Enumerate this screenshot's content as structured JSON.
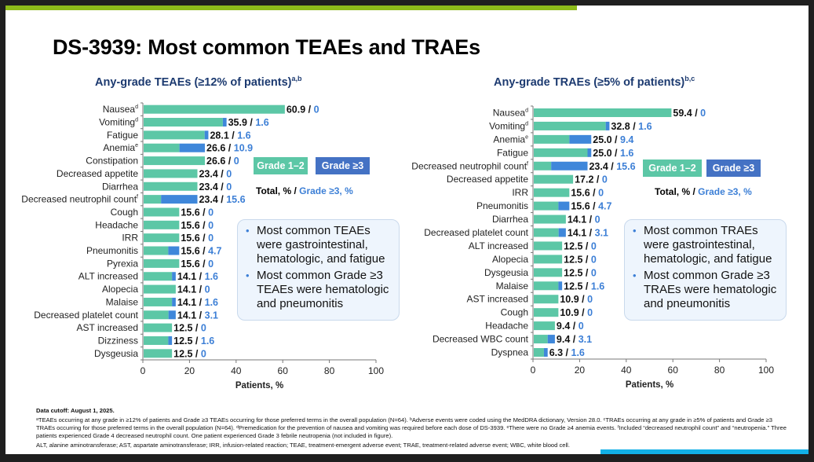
{
  "title": "DS-3939: Most common TEAEs and TRAEs",
  "colors": {
    "grade12": "#5cc7a6",
    "grade3": "#3f87da",
    "value_total": "#111111",
    "value_g3": "#3c7fd6"
  },
  "legend": {
    "grade12": "Grade 1–2",
    "grade3": "Grade ≥3",
    "total_label": "Total, % / ",
    "g3_label": "Grade ≥3, %"
  },
  "chart_data": [
    {
      "type": "bar",
      "orientation": "horizontal-stacked",
      "title": "Any-grade TEAEs (≥12% of patients)",
      "title_sup": "a,b",
      "xlabel": "Patients, %",
      "xlim": [
        0,
        100
      ],
      "xticks": [
        "0",
        "20",
        "40",
        "60",
        "80",
        "100"
      ],
      "categories": [
        "Nausea",
        "Vomiting",
        "Fatigue",
        "Anemia",
        "Constipation",
        "Decreased appetite",
        "Diarrhea",
        "Decreased neutrophil count",
        "Cough",
        "Headache",
        "IRR",
        "Pneumonitis",
        "Pyrexia",
        "ALT increased",
        "Alopecia",
        "Malaise",
        "Decreased platelet count",
        "AST increased",
        "Dizziness",
        "Dysgeusia"
      ],
      "category_sups": [
        "d",
        "d",
        "",
        "e",
        "",
        "",
        "",
        "f",
        "",
        "",
        "",
        "",
        "",
        "",
        "",
        "",
        "",
        "",
        "",
        ""
      ],
      "series": [
        {
          "name": "Total",
          "values": [
            60.9,
            35.9,
            28.1,
            26.6,
            26.6,
            23.4,
            23.4,
            23.4,
            15.6,
            15.6,
            15.6,
            15.6,
            15.6,
            14.1,
            14.1,
            14.1,
            14.1,
            12.5,
            12.5,
            12.5
          ]
        },
        {
          "name": "Grade ≥3",
          "values": [
            0,
            1.6,
            1.6,
            10.9,
            0,
            0,
            0,
            15.6,
            0,
            0,
            0,
            4.7,
            0,
            1.6,
            0,
            1.6,
            3.1,
            0,
            1.6,
            0
          ]
        }
      ],
      "labels_total": [
        "60.9",
        "35.9",
        "28.1",
        "26.6",
        "26.6",
        "23.4",
        "23.4",
        "23.4",
        "15.6",
        "15.6",
        "15.6",
        "15.6",
        "15.6",
        "14.1",
        "14.1",
        "14.1",
        "14.1",
        "12.5",
        "12.5",
        "12.5"
      ],
      "labels_g3": [
        "0",
        "1.6",
        "1.6",
        "10.9",
        "0",
        "0",
        "0",
        "15.6",
        "0",
        "0",
        "0",
        "4.7",
        "0",
        "1.6",
        "0",
        "1.6",
        "3.1",
        "0",
        "1.6",
        "0"
      ],
      "callout": [
        "Most common TEAEs were gastrointestinal, hematologic, and fatigue",
        "Most common Grade ≥3 TEAEs were hematologic and pneumonitis"
      ]
    },
    {
      "type": "bar",
      "orientation": "horizontal-stacked",
      "title": "Any-grade TRAEs (≥5% of patients)",
      "title_sup": "b,c",
      "xlabel": "Patients, %",
      "xlim": [
        0,
        100
      ],
      "xticks": [
        "0",
        "20",
        "40",
        "60",
        "80",
        "100"
      ],
      "categories": [
        "Nausea",
        "Vomiting",
        "Anemia",
        "Fatigue",
        "Decreased neutrophil count",
        "Decreased appetite",
        "IRR",
        "Pneumonitis",
        "Diarrhea",
        "Decreased platelet count",
        "ALT increased",
        "Alopecia",
        "Dysgeusia",
        "Malaise",
        "AST increased",
        "Cough",
        "Headache",
        "Decreased WBC count",
        "Dyspnea"
      ],
      "category_sups": [
        "d",
        "d",
        "e",
        "",
        "f",
        "",
        "",
        "",
        "",
        "",
        "",
        "",
        "",
        "",
        "",
        "",
        "",
        "",
        ""
      ],
      "series": [
        {
          "name": "Total",
          "values": [
            59.4,
            32.8,
            25.0,
            25.0,
            23.4,
            17.2,
            15.6,
            15.6,
            14.1,
            14.1,
            12.5,
            12.5,
            12.5,
            12.5,
            10.9,
            10.9,
            9.4,
            9.4,
            6.3
          ]
        },
        {
          "name": "Grade ≥3",
          "values": [
            0,
            1.6,
            9.4,
            1.6,
            15.6,
            0,
            0,
            4.7,
            0,
            3.1,
            0,
            0,
            0,
            1.6,
            0,
            0,
            0,
            3.1,
            1.6
          ]
        }
      ],
      "labels_total": [
        "59.4",
        "32.8",
        "25.0",
        "25.0",
        "23.4",
        "17.2",
        "15.6",
        "15.6",
        "14.1",
        "14.1",
        "12.5",
        "12.5",
        "12.5",
        "12.5",
        "10.9",
        "10.9",
        "9.4",
        "9.4",
        "6.3"
      ],
      "labels_g3": [
        "0",
        "1.6",
        "9.4",
        "1.6",
        "15.6",
        "0",
        "0",
        "4.7",
        "0",
        "3.1",
        "0",
        "0",
        "0",
        "1.6",
        "0",
        "0",
        "0",
        "3.1",
        "1.6"
      ],
      "callout": [
        "Most common TRAEs were gastrointestinal, hematologic, and fatigue",
        "Most common Grade ≥3 TRAEs were hematologic and pneumonitis"
      ]
    }
  ],
  "footnotes": {
    "cutoff": "Data cutoff: August 1, 2025.",
    "notes": "ᵃTEAEs occurring at any grade in ≥12% of patients and Grade ≥3 TEAEs occurring for those preferred terms in the overall population (N=64). ᵇAdverse events were coded using the MedDRA dictionary, Version 28.0. ᶜTRAEs occurring at any grade in ≥5% of patients and Grade ≥3 TRAEs occurring for those preferred terms in the overall population (N=64). ᵈPremedication for the prevention of nausea and vomiting was required before each dose of DS-3939. ᵉThere were no Grade ≥4 anemia events. ᶠIncluded “decreased neutrophil count” and “neutropenia.” Three patients experienced Grade 4 decreased neutrophil count. One patient experienced Grade 3 febrile neutropenia (not included in figure).",
    "abbreviations": "ALT, alanine aminotransferase; AST, aspartate aminotransferase; IRR, infusion-related reaction; TEAE, treatment-emergent adverse event; TRAE, treatment-related adverse event; WBC, white blood cell."
  }
}
